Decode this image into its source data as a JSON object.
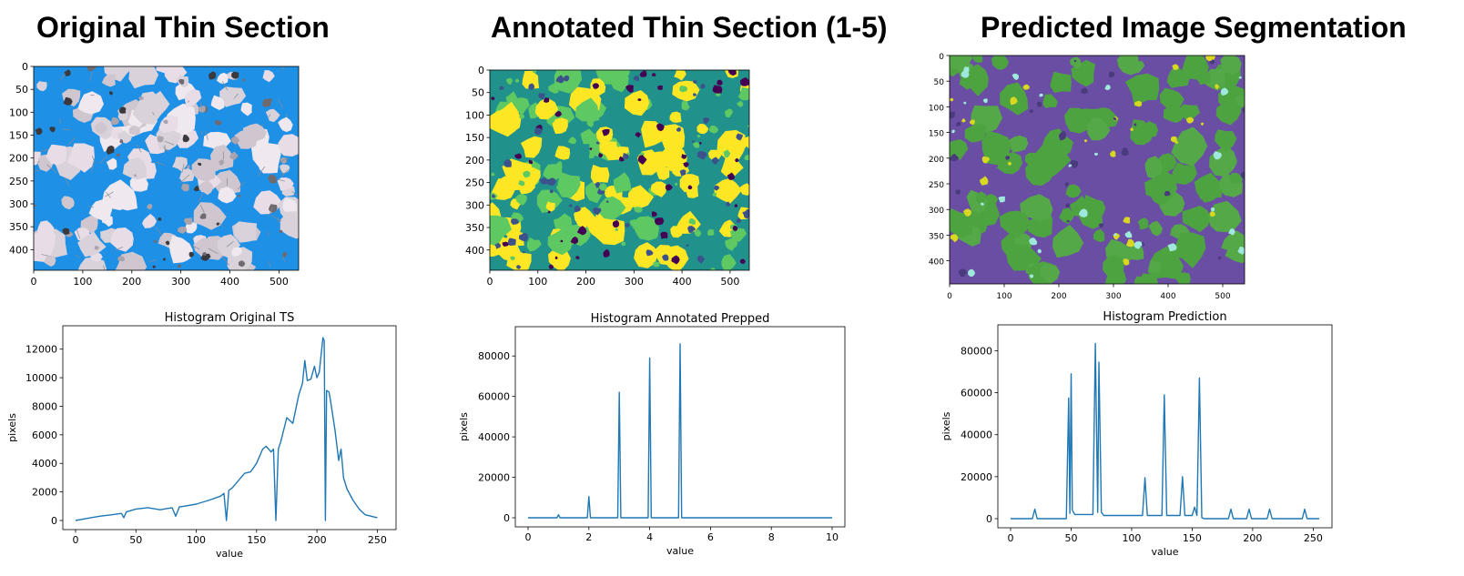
{
  "headings": {
    "left": "Original Thin Section",
    "middle": "Annotated Thin Section (1-5)",
    "right": "Predicted Image Segmentation"
  },
  "colors": {
    "line": "#1f77b4",
    "water_blue": "#1e90e6",
    "grain_pink": "#e8dde6",
    "viridis_yellow": "#fde725",
    "viridis_green": "#5ec962",
    "viridis_teal": "#21918c",
    "viridis_blue": "#3b528b",
    "viridis_purple": "#440154",
    "pred_purple": "#6a4ea3",
    "pred_green": "#4ea341",
    "pred_cyan": "#9ee8dc",
    "pred_yellow": "#d8d820"
  },
  "images": [
    {
      "name": "original",
      "palette": "original",
      "xticks": [
        0,
        100,
        200,
        300,
        400,
        500
      ],
      "yticks": [
        0,
        50,
        100,
        150,
        200,
        250,
        300,
        350,
        400
      ],
      "xlim": [
        0,
        540
      ],
      "ylim": [
        0,
        445
      ]
    },
    {
      "name": "annotated",
      "palette": "annotated",
      "xticks": [
        0,
        100,
        200,
        300,
        400,
        500
      ],
      "yticks": [
        0,
        50,
        100,
        150,
        200,
        250,
        300,
        350,
        400
      ],
      "xlim": [
        0,
        540
      ],
      "ylim": [
        0,
        445
      ]
    },
    {
      "name": "prediction",
      "palette": "prediction",
      "xticks": [
        0,
        100,
        200,
        300,
        400,
        500
      ],
      "yticks": [
        0,
        50,
        100,
        150,
        200,
        250,
        300,
        350,
        400
      ],
      "xlim": [
        0,
        540
      ],
      "ylim": [
        0,
        445
      ]
    }
  ],
  "chart_data": [
    {
      "type": "line",
      "title": "Histogram Original TS",
      "xlabel": "value",
      "ylabel": "pixels",
      "xlim": [
        0,
        255
      ],
      "ylim": [
        0,
        13000
      ],
      "xticks": [
        0,
        50,
        100,
        150,
        200,
        250
      ],
      "yticks": [
        0,
        2000,
        4000,
        6000,
        8000,
        10000,
        12000
      ],
      "series": [
        {
          "x": [
            0,
            10,
            20,
            30,
            38,
            40,
            42,
            50,
            60,
            70,
            80,
            83,
            86,
            90,
            100,
            110,
            120,
            123,
            125,
            127,
            130,
            140,
            145,
            150,
            155,
            158,
            162,
            164,
            166,
            168,
            170,
            175,
            180,
            185,
            188,
            190,
            192,
            195,
            198,
            200,
            202,
            205,
            206,
            207,
            208,
            210,
            212,
            215,
            218,
            220,
            222,
            225,
            230,
            235,
            240,
            245,
            250
          ],
          "y": [
            0,
            150,
            300,
            400,
            500,
            200,
            600,
            800,
            900,
            750,
            900,
            300,
            950,
            1000,
            1150,
            1400,
            1700,
            1900,
            0,
            2100,
            2300,
            3300,
            3400,
            4000,
            5000,
            5200,
            4800,
            5000,
            0,
            5000,
            5500,
            7200,
            6800,
            8800,
            9600,
            11200,
            9800,
            9900,
            10800,
            10000,
            10400,
            12800,
            12600,
            0,
            9100,
            9000,
            8000,
            6300,
            4200,
            5000,
            3000,
            2200,
            1400,
            800,
            400,
            300,
            200
          ]
        }
      ]
    },
    {
      "type": "line",
      "title": "Histogram Annotated Prepped",
      "xlabel": "value",
      "ylabel": "pixels",
      "xlim": [
        0,
        10
      ],
      "ylim": [
        0,
        90000
      ],
      "xticks": [
        0,
        2,
        4,
        6,
        8,
        10
      ],
      "yticks": [
        0,
        20000,
        40000,
        60000,
        80000
      ],
      "series": [
        {
          "x": [
            0,
            0.95,
            1,
            1.05,
            1.95,
            2,
            2.05,
            2.95,
            3,
            3.05,
            3.95,
            4,
            4.05,
            4.95,
            5,
            5.05,
            10
          ],
          "y": [
            0,
            0,
            1500,
            0,
            0,
            10500,
            0,
            0,
            62000,
            0,
            0,
            79000,
            0,
            0,
            86000,
            0,
            0
          ]
        }
      ]
    },
    {
      "type": "line",
      "title": "Histogram Prediction",
      "xlabel": "value",
      "ylabel": "pixels",
      "xlim": [
        0,
        255
      ],
      "ylim": [
        0,
        88000
      ],
      "xticks": [
        0,
        50,
        100,
        150,
        200,
        250
      ],
      "yticks": [
        0,
        20000,
        40000,
        60000,
        80000
      ],
      "series": [
        {
          "x": [
            0,
            18,
            20,
            22,
            46,
            48,
            49,
            50,
            51,
            53,
            60,
            68,
            70,
            72,
            73,
            75,
            77,
            80,
            100,
            109,
            111,
            113,
            125,
            127,
            129,
            140,
            142,
            144,
            146,
            150,
            152,
            154,
            156,
            158,
            160,
            180,
            182,
            184,
            195,
            197,
            199,
            212,
            214,
            216,
            241,
            243,
            245,
            255
          ],
          "y": [
            0,
            0,
            4500,
            0,
            0,
            57500,
            2500,
            69000,
            4000,
            2000,
            2000,
            2000,
            83500,
            3000,
            74500,
            3000,
            1500,
            1500,
            1500,
            1500,
            19500,
            1500,
            1500,
            59000,
            1500,
            1500,
            20000,
            1500,
            1500,
            1500,
            5500,
            1500,
            67000,
            500,
            0,
            0,
            4500,
            0,
            0,
            4500,
            0,
            0,
            4500,
            0,
            0,
            4500,
            0,
            0
          ]
        }
      ]
    }
  ]
}
